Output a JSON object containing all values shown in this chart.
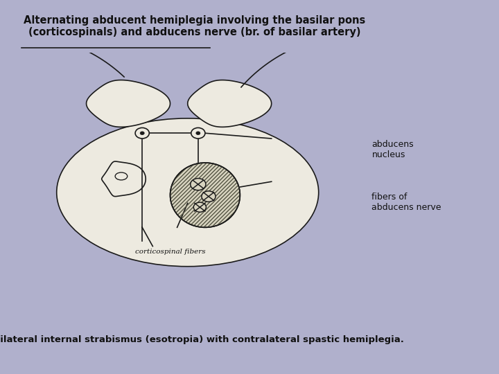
{
  "bg_color": "#b0b0cc",
  "diagram_bg": "#e8e5dc",
  "title_line1": "Alternating abducent hemiplegia involving the basilar pons",
  "title_line2": "(corticospinals) and abducens nerve (br. of basilar artery)",
  "bottom_text": "Ipsilateral internal strabismus (esotropia) with contralateral spastic hemiplegia.",
  "label_abducens_nucleus": "abducens\nnucleus",
  "label_fibers": "fibers of\nabducens nerve",
  "label_corticospinal": "corticospinal fibers",
  "line_color": "#1a1a1a",
  "diagram_fill": "#edeae0"
}
